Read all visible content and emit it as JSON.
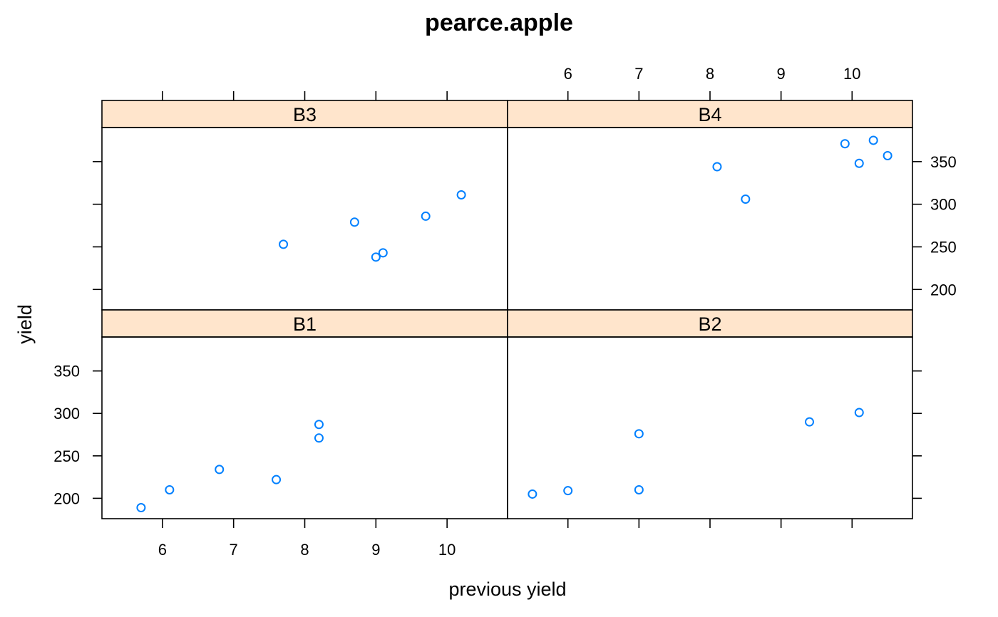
{
  "chart_data": {
    "type": "scatter",
    "title": "pearce.apple",
    "xlabel": "previous yield",
    "ylabel": "yield",
    "xlim": [
      5.15,
      10.85
    ],
    "ylim": [
      176,
      390
    ],
    "x_ticks": [
      6,
      7,
      8,
      9,
      10
    ],
    "y_ticks": [
      200,
      250,
      300,
      350
    ],
    "x_tick_labels": [
      "6",
      "7",
      "8",
      "9",
      "10"
    ],
    "y_tick_labels": [
      "200",
      "250",
      "300",
      "350"
    ],
    "panels": [
      {
        "name": "B3",
        "x": [
          7.7,
          8.7,
          9.0,
          9.1,
          9.7,
          10.2
        ],
        "y": [
          253,
          279,
          238,
          243,
          286,
          311
        ]
      },
      {
        "name": "B4",
        "x": [
          8.1,
          8.5,
          9.9,
          10.1,
          10.3,
          10.5
        ],
        "y": [
          344,
          306,
          371,
          348,
          375,
          357
        ]
      },
      {
        "name": "B1",
        "x": [
          5.7,
          6.1,
          6.8,
          7.6,
          8.2,
          8.2
        ],
        "y": [
          189,
          210,
          234,
          222,
          287,
          271
        ]
      },
      {
        "name": "B2",
        "x": [
          5.5,
          6.0,
          7.0,
          7.0,
          9.4,
          10.1
        ],
        "y": [
          205,
          209,
          276,
          210,
          290,
          301
        ]
      }
    ]
  }
}
